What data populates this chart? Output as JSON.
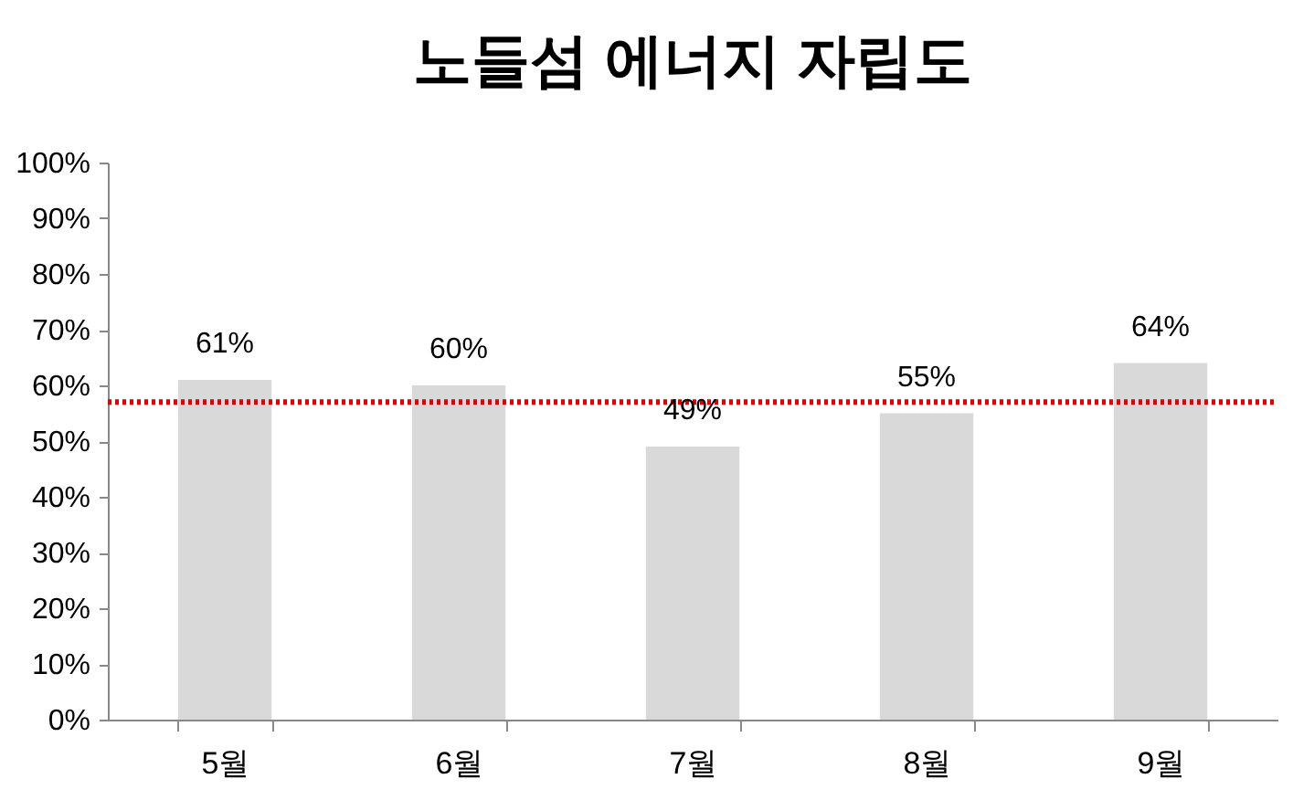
{
  "chart_data": {
    "type": "bar",
    "title": "노들섬 에너지 자립도",
    "categories": [
      "5월",
      "6월",
      "7월",
      "8월",
      "9월"
    ],
    "values": [
      61,
      60,
      49,
      55,
      64
    ],
    "color": "#d9d9d9",
    "value_labels": [
      "61%",
      "60%",
      "49%",
      "55%",
      "64%"
    ],
    "ylim": [
      0,
      100
    ],
    "yticks": [
      {
        "value": 0,
        "label": "0%"
      },
      {
        "value": 10,
        "label": "10%"
      },
      {
        "value": 20,
        "label": "20%"
      },
      {
        "value": 30,
        "label": "30%"
      },
      {
        "value": 40,
        "label": "40%"
      },
      {
        "value": 50,
        "label": "50%"
      },
      {
        "value": 60,
        "label": "60%"
      },
      {
        "value": 70,
        "label": "70%"
      },
      {
        "value": 80,
        "label": "80%"
      },
      {
        "value": 90,
        "label": "90%"
      },
      {
        "value": 100,
        "label": "100%"
      }
    ],
    "ref_lines": [
      {
        "axis": "y",
        "value": 57,
        "color": "#e00000",
        "line_style": "dotted"
      }
    ],
    "grid": false
  }
}
